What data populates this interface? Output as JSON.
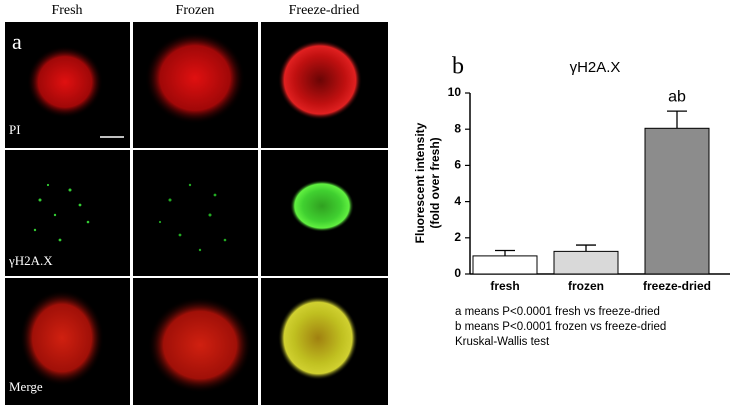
{
  "panel_a": {
    "label": "a",
    "columns": [
      "Fresh",
      "Frozen",
      "Freeze-dried"
    ],
    "rows": [
      "PI",
      "γH2A.X",
      "Merge"
    ]
  },
  "chart_data": {
    "type": "bar",
    "panel_label": "b",
    "title": "γH2A.X",
    "y_label": [
      "Fluorescent intensity",
      "(fold over fresh)"
    ],
    "categories": [
      "fresh",
      "frozen",
      "freeze-dried"
    ],
    "values": [
      1.0,
      1.25,
      8.05
    ],
    "errors": [
      0.3,
      0.35,
      0.95
    ],
    "colors": [
      "#ffffff",
      "#d9d9d9",
      "#8c8c8c"
    ],
    "bar_labels": [
      null,
      null,
      "ab"
    ],
    "ylim": [
      0,
      10
    ],
    "yticks": [
      0,
      2,
      4,
      6,
      8,
      10
    ],
    "notes": [
      "a means P<0.0001 fresh vs freeze-dried",
      "b means P<0.0001 frozen vs freeze-dried",
      "Kruskal-Wallis test"
    ]
  }
}
